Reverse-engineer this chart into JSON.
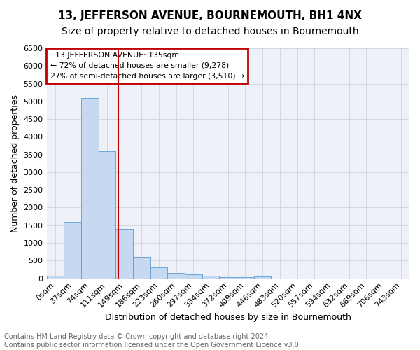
{
  "title": "13, JEFFERSON AVENUE, BOURNEMOUTH, BH1 4NX",
  "subtitle": "Size of property relative to detached houses in Bournemouth",
  "xlabel": "Distribution of detached houses by size in Bournemouth",
  "ylabel": "Number of detached properties",
  "property_label": "13 JEFFERSON AVENUE: 135sqm",
  "pct_smaller": 72,
  "n_smaller": 9278,
  "pct_larger_semi": 27,
  "n_larger_semi": 3510,
  "bin_labels": [
    "0sqm",
    "37sqm",
    "74sqm",
    "111sqm",
    "149sqm",
    "186sqm",
    "223sqm",
    "260sqm",
    "297sqm",
    "334sqm",
    "372sqm",
    "409sqm",
    "446sqm",
    "483sqm",
    "520sqm",
    "557sqm",
    "594sqm",
    "632sqm",
    "669sqm",
    "706sqm",
    "743sqm"
  ],
  "bar_heights": [
    70,
    1600,
    5100,
    3600,
    1400,
    600,
    300,
    150,
    120,
    80,
    40,
    30,
    50,
    0,
    0,
    0,
    0,
    0,
    0,
    0,
    0
  ],
  "bar_color": "#c6d9f0",
  "bar_edge_color": "#5b9bd5",
  "vline_pos": 3.65,
  "vline_color": "#c00000",
  "ylim": [
    0,
    6500
  ],
  "yticks": [
    0,
    500,
    1000,
    1500,
    2000,
    2500,
    3000,
    3500,
    4000,
    4500,
    5000,
    5500,
    6000,
    6500
  ],
  "grid_color": "#d0d8e8",
  "bg_color": "#eef2f8",
  "annotation_box_color": "#c00000",
  "footer_text": "Contains HM Land Registry data © Crown copyright and database right 2024.\nContains public sector information licensed under the Open Government Licence v3.0.",
  "title_fontsize": 11,
  "subtitle_fontsize": 10,
  "xlabel_fontsize": 9,
  "ylabel_fontsize": 9,
  "tick_fontsize": 8,
  "footer_fontsize": 7
}
